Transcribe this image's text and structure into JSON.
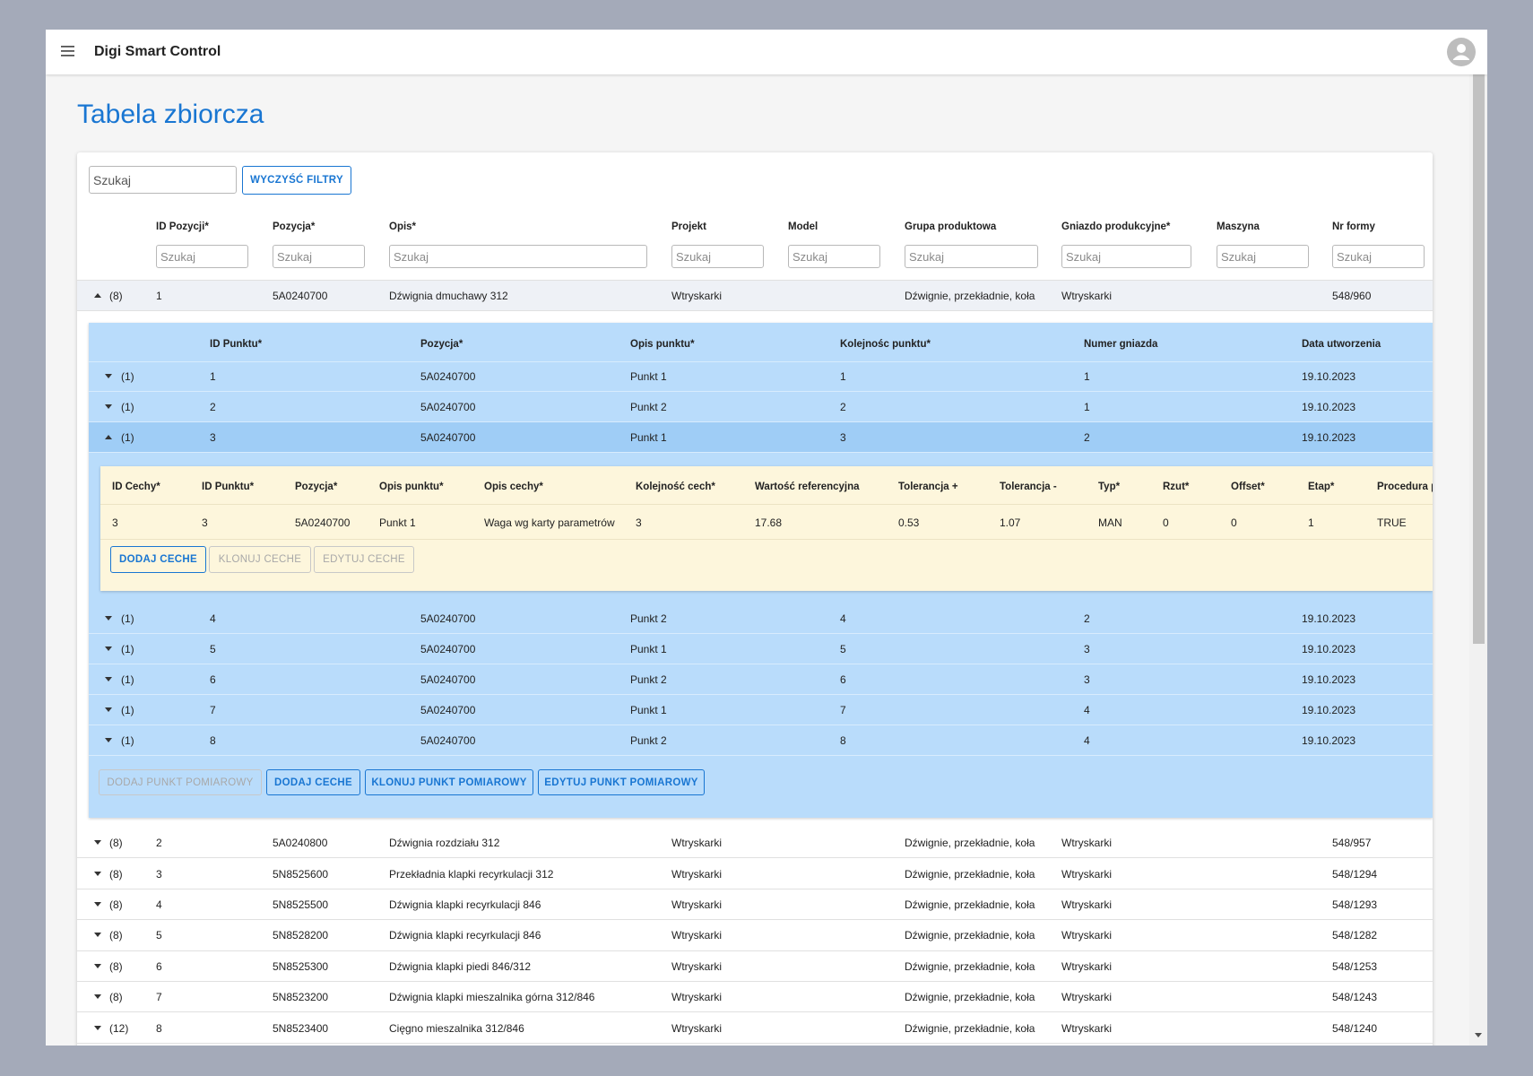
{
  "app": {
    "title": "Digi Smart Control"
  },
  "page": {
    "title": "Tabela zbiorcza"
  },
  "toolbar": {
    "search_placeholder": "Szukaj",
    "clear_filters": "WYCZYŚĆ FILTRY"
  },
  "table": {
    "columns": [
      "ID Pozycji*",
      "Pozycja*",
      "Opis*",
      "Projekt",
      "Model",
      "Grupa produktowa",
      "Gniazdo produkcyjne*",
      "Maszyna",
      "Nr formy"
    ],
    "filter_placeholder": "Szukaj",
    "rows": [
      {
        "count": "(8)",
        "expanded": true,
        "cells": [
          "1",
          "5A0240700",
          "Dźwignia dmuchawy 312",
          "Wtryskarki",
          null,
          "Dźwignie, przekładnie, koła",
          "Wtryskarki",
          null,
          "548/960"
        ]
      },
      {
        "count": "(8)",
        "expanded": false,
        "cells": [
          "2",
          "5A0240800",
          "Dźwignia rozdziału 312",
          "Wtryskarki",
          null,
          "Dźwignie, przekładnie, koła",
          "Wtryskarki",
          null,
          "548/957"
        ]
      },
      {
        "count": "(8)",
        "expanded": false,
        "cells": [
          "3",
          "5N8525600",
          "Przekładnia klapki recyrkulacji 312",
          "Wtryskarki",
          null,
          "Dźwignie, przekładnie, koła",
          "Wtryskarki",
          null,
          "548/1294"
        ]
      },
      {
        "count": "(8)",
        "expanded": false,
        "cells": [
          "4",
          "5N8525500",
          "Dźwignia klapki recyrkulacji 846",
          "Wtryskarki",
          null,
          "Dźwignie, przekładnie, koła",
          "Wtryskarki",
          null,
          "548/1293"
        ]
      },
      {
        "count": "(8)",
        "expanded": false,
        "cells": [
          "5",
          "5N8528200",
          "Dźwignia klapki recyrkulacji 846",
          "Wtryskarki",
          null,
          "Dźwignie, przekładnie, koła",
          "Wtryskarki",
          null,
          "548/1282"
        ]
      },
      {
        "count": "(8)",
        "expanded": false,
        "cells": [
          "6",
          "5N8525300",
          "Dźwignia klapki piedi 846/312",
          "Wtryskarki",
          null,
          "Dźwignie, przekładnie, koła",
          "Wtryskarki",
          null,
          "548/1253"
        ]
      },
      {
        "count": "(8)",
        "expanded": false,
        "cells": [
          "7",
          "5N8523200",
          "Dźwignia klapki mieszalnika górna 312/846",
          "Wtryskarki",
          null,
          "Dźwignie, przekładnie, koła",
          "Wtryskarki",
          null,
          "548/1243"
        ]
      },
      {
        "count": "(12)",
        "expanded": false,
        "cells": [
          "8",
          "5N8523400",
          "Cięgno mieszalnika 312/846",
          "Wtryskarki",
          null,
          "Dźwignie, przekładnie, koła",
          "Wtryskarki",
          null,
          "548/1240"
        ]
      }
    ]
  },
  "points": {
    "columns": [
      "ID Punktu*",
      "Pozycja*",
      "Opis punktu*",
      "Kolejnośc punktu*",
      "Numer gniazda",
      "Data utworzenia"
    ],
    "rows": [
      {
        "count": "(1)",
        "expanded": false,
        "cells": [
          "1",
          "5A0240700",
          "Punkt 1",
          "1",
          "1",
          "19.10.2023"
        ]
      },
      {
        "count": "(1)",
        "expanded": false,
        "cells": [
          "2",
          "5A0240700",
          "Punkt 2",
          "2",
          "1",
          "19.10.2023"
        ]
      },
      {
        "count": "(1)",
        "expanded": true,
        "cells": [
          "3",
          "5A0240700",
          "Punkt 1",
          "3",
          "2",
          "19.10.2023"
        ]
      },
      {
        "count": "(1)",
        "expanded": false,
        "cells": [
          "4",
          "5A0240700",
          "Punkt 2",
          "4",
          "2",
          "19.10.2023"
        ]
      },
      {
        "count": "(1)",
        "expanded": false,
        "cells": [
          "5",
          "5A0240700",
          "Punkt 1",
          "5",
          "3",
          "19.10.2023"
        ]
      },
      {
        "count": "(1)",
        "expanded": false,
        "cells": [
          "6",
          "5A0240700",
          "Punkt 2",
          "6",
          "3",
          "19.10.2023"
        ]
      },
      {
        "count": "(1)",
        "expanded": false,
        "cells": [
          "7",
          "5A0240700",
          "Punkt 1",
          "7",
          "4",
          "19.10.2023"
        ]
      },
      {
        "count": "(1)",
        "expanded": false,
        "cells": [
          "8",
          "5A0240700",
          "Punkt 2",
          "8",
          "4",
          "19.10.2023"
        ]
      }
    ],
    "buttons": [
      {
        "label": "DODAJ PUNKT POMIAROWY",
        "disabled": true
      },
      {
        "label": "DODAJ CECHE",
        "disabled": false
      },
      {
        "label": "KLONUJ PUNKT POMIAROWY",
        "disabled": false
      },
      {
        "label": "EDYTUJ PUNKT POMIAROWY",
        "disabled": false
      }
    ]
  },
  "features": {
    "columns": [
      "ID Cechy*",
      "ID Punktu*",
      "Pozycja*",
      "Opis punktu*",
      "Opis cechy*",
      "Kolejność cech*",
      "Wartość referencyjna",
      "Tolerancja +",
      "Tolerancja -",
      "Typ*",
      "Rzut*",
      "Offset*",
      "Etap*",
      "Procedura p"
    ],
    "rows": [
      [
        "3",
        "3",
        "5A0240700",
        "Punkt 1",
        "Waga wg karty parametrów",
        "3",
        "17.68",
        "0.53",
        "1.07",
        "MAN",
        "0",
        "0",
        "1",
        "TRUE"
      ]
    ],
    "buttons": [
      {
        "label": "DODAJ CECHE",
        "disabled": false
      },
      {
        "label": "KLONUJ CECHE",
        "disabled": true
      },
      {
        "label": "EDYTUJ CECHE",
        "disabled": true
      }
    ]
  }
}
